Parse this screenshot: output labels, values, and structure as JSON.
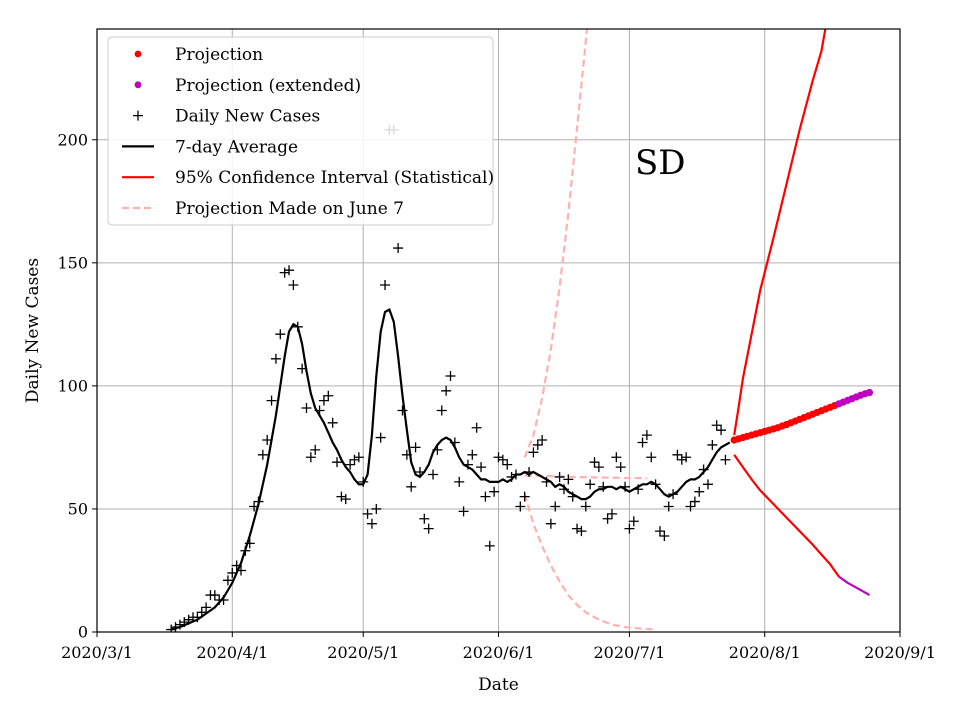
{
  "chart_data": {
    "type": "line",
    "title": "",
    "annotation": "SD",
    "xlabel": "Date",
    "ylabel": "Daily New Cases",
    "x_ticks": [
      {
        "day": 0,
        "label": "2020/3/1"
      },
      {
        "day": 31,
        "label": "2020/4/1"
      },
      {
        "day": 61,
        "label": "2020/5/1"
      },
      {
        "day": 92,
        "label": "2020/6/1"
      },
      {
        "day": 122,
        "label": "2020/7/1"
      },
      {
        "day": 153,
        "label": "2020/8/1"
      },
      {
        "day": 184,
        "label": "2020/9/1"
      }
    ],
    "x_unit": "days since 2020/3/1",
    "xlim": [
      0,
      184
    ],
    "ylim": [
      0,
      245
    ],
    "y_ticks": [
      0,
      50,
      100,
      150,
      200
    ],
    "grid": true,
    "legend_position": "top-left",
    "legend": [
      {
        "key": "projection",
        "label": "Projection"
      },
      {
        "key": "projection_ext",
        "label": "Projection (extended)"
      },
      {
        "key": "daily",
        "label": "Daily New Cases"
      },
      {
        "key": "avg7",
        "label": "7-day Average"
      },
      {
        "key": "ci",
        "label": "95% Confidence Interval (Statistical)"
      },
      {
        "key": "june7",
        "label": "Projection Made on June 7"
      }
    ],
    "colors": {
      "projection": "#ff0000",
      "projection_ext": "#bf00bf",
      "daily": "#000000",
      "avg7": "#000000",
      "ci": "#ff0000",
      "june7": "#ffb0b0",
      "grid": "#b0b0b0"
    },
    "series": {
      "daily_new_cases": [
        [
          17,
          1
        ],
        [
          18,
          2
        ],
        [
          19,
          3
        ],
        [
          20,
          4
        ],
        [
          21,
          5
        ],
        [
          22,
          6
        ],
        [
          23,
          6
        ],
        [
          24,
          8
        ],
        [
          25,
          10
        ],
        [
          26,
          15
        ],
        [
          27,
          15
        ],
        [
          28,
          13
        ],
        [
          29,
          13
        ],
        [
          30,
          21
        ],
        [
          31,
          24
        ],
        [
          32,
          27
        ],
        [
          33,
          25
        ],
        [
          34,
          33
        ],
        [
          35,
          36
        ],
        [
          36,
          51
        ],
        [
          37,
          53
        ],
        [
          38,
          72
        ],
        [
          39,
          78
        ],
        [
          40,
          94
        ],
        [
          41,
          111
        ],
        [
          42,
          121
        ],
        [
          43,
          146
        ],
        [
          44,
          147
        ],
        [
          45,
          141
        ],
        [
          46,
          124
        ],
        [
          47,
          107
        ],
        [
          48,
          91
        ],
        [
          49,
          71
        ],
        [
          50,
          74
        ],
        [
          51,
          90
        ],
        [
          52,
          94
        ],
        [
          53,
          96
        ],
        [
          54,
          85
        ],
        [
          55,
          69
        ],
        [
          56,
          55
        ],
        [
          57,
          54
        ],
        [
          58,
          68
        ],
        [
          59,
          70
        ],
        [
          60,
          71
        ],
        [
          61,
          61
        ],
        [
          62,
          48
        ],
        [
          63,
          44
        ],
        [
          64,
          50
        ],
        [
          65,
          79
        ],
        [
          66,
          141
        ],
        [
          67,
          204
        ],
        [
          68,
          204
        ],
        [
          69,
          156
        ],
        [
          70,
          90
        ],
        [
          71,
          72
        ],
        [
          72,
          59
        ],
        [
          73,
          75
        ],
        [
          74,
          65
        ],
        [
          75,
          46
        ],
        [
          76,
          42
        ],
        [
          77,
          64
        ],
        [
          78,
          74
        ],
        [
          79,
          90
        ],
        [
          80,
          98
        ],
        [
          81,
          104
        ],
        [
          82,
          77
        ],
        [
          83,
          61
        ],
        [
          84,
          49
        ],
        [
          85,
          68
        ],
        [
          86,
          72
        ],
        [
          87,
          83
        ],
        [
          88,
          67
        ],
        [
          89,
          55
        ],
        [
          90,
          35
        ],
        [
          91,
          57
        ],
        [
          92,
          71
        ],
        [
          93,
          70
        ],
        [
          94,
          68
        ],
        [
          95,
          63
        ],
        [
          96,
          64
        ],
        [
          97,
          51
        ],
        [
          98,
          55
        ],
        [
          99,
          65
        ],
        [
          100,
          73
        ],
        [
          101,
          76
        ],
        [
          102,
          78
        ],
        [
          103,
          61
        ],
        [
          104,
          44
        ],
        [
          105,
          51
        ],
        [
          106,
          63
        ],
        [
          107,
          58
        ],
        [
          108,
          62
        ],
        [
          109,
          55
        ],
        [
          110,
          42
        ],
        [
          111,
          41
        ],
        [
          112,
          51
        ],
        [
          113,
          60
        ],
        [
          114,
          69
        ],
        [
          115,
          67
        ],
        [
          116,
          59
        ],
        [
          117,
          46
        ],
        [
          118,
          48
        ],
        [
          119,
          71
        ],
        [
          120,
          67
        ],
        [
          121,
          59
        ],
        [
          122,
          42
        ],
        [
          123,
          45
        ],
        [
          124,
          58
        ],
        [
          125,
          77
        ],
        [
          126,
          80
        ],
        [
          127,
          71
        ],
        [
          128,
          60
        ],
        [
          129,
          41
        ],
        [
          130,
          39
        ],
        [
          131,
          51
        ],
        [
          132,
          56
        ],
        [
          133,
          72
        ],
        [
          134,
          70
        ],
        [
          135,
          71
        ],
        [
          136,
          51
        ],
        [
          137,
          53
        ],
        [
          138,
          57
        ],
        [
          139,
          66
        ],
        [
          140,
          60
        ],
        [
          141,
          76
        ],
        [
          142,
          84
        ],
        [
          143,
          82
        ],
        [
          144,
          70
        ]
      ],
      "avg7": [
        [
          17,
          1
        ],
        [
          19,
          2
        ],
        [
          21,
          3.5
        ],
        [
          23,
          5
        ],
        [
          25,
          7.5
        ],
        [
          27,
          10
        ],
        [
          29,
          14
        ],
        [
          31,
          20
        ],
        [
          33,
          28
        ],
        [
          35,
          39
        ],
        [
          37,
          52
        ],
        [
          39,
          68
        ],
        [
          41,
          88
        ],
        [
          42,
          100
        ],
        [
          43,
          112
        ],
        [
          44,
          122
        ],
        [
          45,
          125
        ],
        [
          46,
          124
        ],
        [
          47,
          117
        ],
        [
          48,
          106
        ],
        [
          49,
          97
        ],
        [
          50,
          91
        ],
        [
          51,
          88
        ],
        [
          52,
          85
        ],
        [
          53,
          81
        ],
        [
          54,
          77
        ],
        [
          55,
          74
        ],
        [
          56,
          70
        ],
        [
          57,
          67
        ],
        [
          58,
          65
        ],
        [
          59,
          62
        ],
        [
          60,
          60
        ],
        [
          61,
          60
        ],
        [
          62,
          64
        ],
        [
          63,
          80
        ],
        [
          64,
          104
        ],
        [
          65,
          122
        ],
        [
          66,
          130
        ],
        [
          67,
          131
        ],
        [
          68,
          126
        ],
        [
          69,
          112
        ],
        [
          70,
          96
        ],
        [
          71,
          82
        ],
        [
          72,
          69
        ],
        [
          73,
          64
        ],
        [
          74,
          63
        ],
        [
          75,
          65
        ],
        [
          76,
          68
        ],
        [
          77,
          73
        ],
        [
          78,
          76
        ],
        [
          79,
          78
        ],
        [
          80,
          79
        ],
        [
          81,
          78
        ],
        [
          82,
          75
        ],
        [
          83,
          71
        ],
        [
          84,
          68
        ],
        [
          85,
          67
        ],
        [
          86,
          66
        ],
        [
          87,
          64
        ],
        [
          88,
          62
        ],
        [
          89,
          62
        ],
        [
          90,
          61
        ],
        [
          91,
          61
        ],
        [
          92,
          61
        ],
        [
          93,
          62
        ],
        [
          94,
          61
        ],
        [
          95,
          62
        ],
        [
          96,
          64
        ],
        [
          97,
          64
        ],
        [
          98,
          65
        ],
        [
          99,
          64
        ],
        [
          100,
          65
        ],
        [
          101,
          64
        ],
        [
          102,
          63
        ],
        [
          103,
          62
        ],
        [
          104,
          61
        ],
        [
          105,
          59
        ],
        [
          106,
          60
        ],
        [
          107,
          59
        ],
        [
          108,
          57
        ],
        [
          109,
          56
        ],
        [
          110,
          55
        ],
        [
          111,
          54
        ],
        [
          112,
          54
        ],
        [
          113,
          55
        ],
        [
          114,
          57
        ],
        [
          115,
          58
        ],
        [
          116,
          58
        ],
        [
          117,
          59
        ],
        [
          118,
          59
        ],
        [
          119,
          58
        ],
        [
          120,
          59
        ],
        [
          121,
          58
        ],
        [
          122,
          57
        ],
        [
          123,
          58
        ],
        [
          124,
          59
        ],
        [
          125,
          60
        ],
        [
          126,
          60
        ],
        [
          127,
          61
        ],
        [
          128,
          60
        ],
        [
          129,
          58
        ],
        [
          130,
          56
        ],
        [
          131,
          55
        ],
        [
          132,
          56
        ],
        [
          133,
          57
        ],
        [
          134,
          59
        ],
        [
          135,
          61
        ],
        [
          136,
          62
        ],
        [
          137,
          62
        ],
        [
          138,
          63
        ],
        [
          139,
          65
        ],
        [
          140,
          67
        ],
        [
          141,
          70
        ],
        [
          142,
          73
        ],
        [
          143,
          75
        ],
        [
          144,
          76
        ],
        [
          145,
          77
        ]
      ],
      "projection": [
        [
          146,
          78
        ],
        [
          147,
          78.5
        ],
        [
          148,
          79
        ],
        [
          149,
          79.5
        ],
        [
          150,
          80
        ],
        [
          151,
          80.5
        ],
        [
          152,
          81
        ],
        [
          153,
          81.5
        ],
        [
          154,
          82
        ],
        [
          155,
          82.5
        ],
        [
          156,
          83
        ],
        [
          157,
          83.7
        ],
        [
          158,
          84.3
        ],
        [
          159,
          85
        ],
        [
          160,
          85.7
        ],
        [
          161,
          86.4
        ],
        [
          162,
          87.1
        ],
        [
          163,
          87.8
        ],
        [
          164,
          88.5
        ],
        [
          165,
          89.2
        ],
        [
          166,
          89.9
        ],
        [
          167,
          90.6
        ],
        [
          168,
          91.3
        ],
        [
          169,
          92
        ]
      ],
      "projection_ext": [
        [
          170,
          92.7
        ],
        [
          171,
          93.4
        ],
        [
          172,
          94.1
        ],
        [
          173,
          94.8
        ],
        [
          174,
          95.5
        ],
        [
          175,
          96.2
        ],
        [
          176,
          96.8
        ],
        [
          177,
          97.3
        ]
      ],
      "ci_upper": [
        [
          146,
          80
        ],
        [
          147,
          91
        ],
        [
          148,
          103
        ],
        [
          150,
          121
        ],
        [
          152,
          139
        ],
        [
          155,
          160
        ],
        [
          158,
          182
        ],
        [
          161,
          204
        ],
        [
          164,
          224
        ],
        [
          166,
          236
        ],
        [
          167,
          246
        ],
        [
          168,
          256
        ]
      ],
      "ci_lower": [
        [
          146,
          72
        ],
        [
          148,
          67
        ],
        [
          150,
          62
        ],
        [
          152,
          57.5
        ],
        [
          155,
          52
        ],
        [
          158,
          46.5
        ],
        [
          161,
          41
        ],
        [
          164,
          35.5
        ],
        [
          166,
          31.5
        ],
        [
          168,
          27.5
        ],
        [
          169,
          25
        ],
        [
          170,
          22.5
        ]
      ],
      "ci_lower_ext": [
        [
          170,
          22.5
        ],
        [
          172,
          20
        ],
        [
          174,
          18
        ],
        [
          176,
          16
        ],
        [
          177,
          15
        ]
      ],
      "june7_upper": [
        [
          98,
          71
        ],
        [
          100,
          80
        ],
        [
          102,
          95
        ],
        [
          104,
          115
        ],
        [
          106,
          140
        ],
        [
          108,
          170
        ],
        [
          110,
          205
        ],
        [
          112,
          240
        ],
        [
          113,
          260
        ]
      ],
      "june7_mid": [
        [
          98,
          63.5
        ],
        [
          102,
          63.5
        ],
        [
          108,
          63
        ],
        [
          114,
          62.8
        ],
        [
          120,
          62.6
        ],
        [
          126,
          62.5
        ]
      ],
      "june7_lower": [
        [
          98,
          56
        ],
        [
          100,
          44
        ],
        [
          102,
          35
        ],
        [
          104,
          27
        ],
        [
          106,
          20.5
        ],
        [
          108,
          15
        ],
        [
          110,
          11
        ],
        [
          112,
          8
        ],
        [
          115,
          5
        ],
        [
          118,
          3
        ],
        [
          121,
          2
        ],
        [
          124,
          1.5
        ],
        [
          128,
          1
        ]
      ]
    }
  }
}
